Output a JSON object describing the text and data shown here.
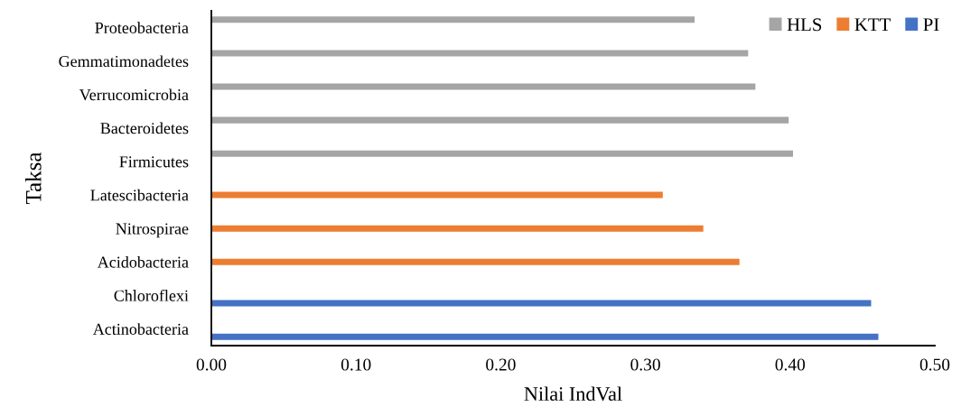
{
  "chart_data": {
    "type": "bar",
    "orientation": "horizontal",
    "xlabel": "Nilai IndVal",
    "ylabel": "Taksa",
    "categories": [
      "Proteobacteria",
      "Gemmatimonadetes",
      "Verrucomicrobia",
      "Bacteroidetes",
      "Firmicutes",
      "Latescibacteria",
      "Nitrospirae",
      "Acidobacteria",
      "Chloroflexi",
      "Actinobacteria"
    ],
    "series": [
      {
        "name": "HLS",
        "color": "#a5a5a5",
        "values": [
          0.334,
          0.371,
          0.376,
          0.399,
          0.402,
          null,
          null,
          null,
          null,
          null
        ]
      },
      {
        "name": "KTT",
        "color": "#ed7d31",
        "values": [
          null,
          null,
          null,
          null,
          null,
          0.312,
          0.34,
          0.365,
          null,
          null
        ]
      },
      {
        "name": "PI",
        "color": "#4472c4",
        "values": [
          null,
          null,
          null,
          null,
          null,
          null,
          null,
          null,
          0.456,
          0.461
        ]
      }
    ],
    "xlim": [
      0,
      0.5
    ],
    "xticks": [
      {
        "value": 0,
        "label": "0.00"
      },
      {
        "value": 0.1,
        "label": "0.10"
      },
      {
        "value": 0.2,
        "label": "0.20"
      },
      {
        "value": 0.3,
        "label": "0.30"
      },
      {
        "value": 0.4,
        "label": "0.40"
      },
      {
        "value": 0.5,
        "label": "0.50"
      }
    ],
    "grid": false,
    "legend": "top right"
  }
}
